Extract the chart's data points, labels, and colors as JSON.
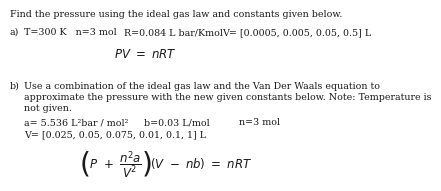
{
  "title": "Find the pressure using the ideal gas law and constants given below.",
  "a_label": "a)",
  "a_T": "T=300 K   n=3 mol",
  "a_R": "R=0.084 L bar/Kmol",
  "a_V": "V= [0.0005, 0.005, 0.05, 0.5] L",
  "a_eq": "$\\mathit{PV}\\ =\\ \\mathit{nRT}$",
  "b_label": "b)",
  "b_text1": "Use a combination of the ideal gas law and the Van Der Waals equation to",
  "b_text2": "approximate the pressure with the new given constants below. Note: Temperature is",
  "b_text3": "not given.",
  "b_a": "a= 5.536 L²bar / mol²",
  "b_b": "b=0.03 L/mol",
  "b_n": "n=3 mol",
  "b_V": "V= [0.025, 0.05, 0.075, 0.01, 0.1, 1] L",
  "b_eq": "$\\left(P\\ +\\ \\dfrac{n^2 a}{V^2}\\right)\\!\\left(V\\ -\\ nb\\right)\\ =\\ \\mathit{nRT}$",
  "bg_color": "#ffffff",
  "text_color": "#1a1a1a",
  "fs": 6.8,
  "fs_eq": 8.5
}
